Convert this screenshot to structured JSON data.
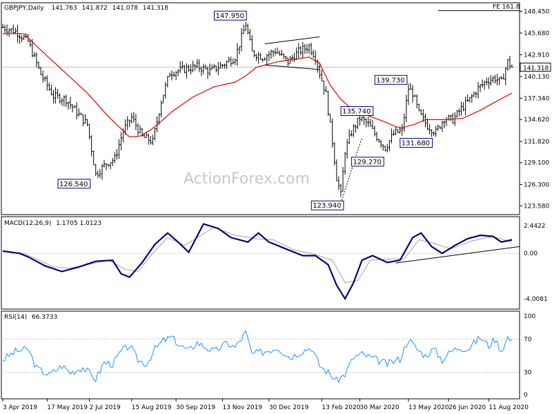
{
  "chart_data": [
    {
      "type": "line",
      "panel": "price",
      "title": "GBPJPY,Daily",
      "ohlc_header": {
        "open": "141.763",
        "high": "141.872",
        "low": "141.078",
        "close": "141.318"
      },
      "y_ticks": [
        "148.450",
        "145.680",
        "142.910",
        "140.130",
        "137.340",
        "134.620",
        "131.820",
        "129.100",
        "126.300",
        "123.580"
      ],
      "ylim": [
        122.9,
        149.2
      ],
      "current_price_label": "141.318",
      "current_price": 141.318,
      "fib_label": "FE 161.8",
      "fib_level": 148.55,
      "swing_labels": [
        {
          "text": "147.950",
          "bar": 115,
          "value": 147.95
        },
        {
          "text": "126.540",
          "bar": 44,
          "value": 126.54
        },
        {
          "text": "135.740",
          "bar": 162,
          "value": 135.74
        },
        {
          "text": "123.940",
          "bar": 160,
          "value": 123.94
        },
        {
          "text": "139.730",
          "bar": 192,
          "value": 139.73
        },
        {
          "text": "131.680",
          "bar": 190,
          "value": 131.68
        },
        {
          "text": "129.270",
          "bar": 181,
          "value": 129.27
        }
      ],
      "x_labels": [
        "3 Apr 2019",
        "17 May 2019",
        "2 Jul 2019",
        "15 Aug 2019",
        "30 Sep 2019",
        "13 Nov 2019",
        "30 Dec 2019",
        "13 Feb 2020",
        "30 Mar 2020",
        "13 May 2020",
        "26 Jun 2020",
        "11 Aug 2020"
      ],
      "x_label_bars": [
        0,
        21,
        41,
        61,
        82,
        104,
        126,
        151,
        169,
        192,
        211,
        230
      ],
      "key_closes": [
        {
          "bar": 0,
          "close": 146.4
        },
        {
          "bar": 6,
          "close": 145.9
        },
        {
          "bar": 12,
          "close": 144.6
        },
        {
          "bar": 18,
          "close": 140.4
        },
        {
          "bar": 24,
          "close": 137.6
        },
        {
          "bar": 30,
          "close": 137.2
        },
        {
          "bar": 36,
          "close": 135.2
        },
        {
          "bar": 40,
          "close": 134.0
        },
        {
          "bar": 44,
          "close": 127.6
        },
        {
          "bar": 49,
          "close": 129.0
        },
        {
          "bar": 53,
          "close": 129.6
        },
        {
          "bar": 57,
          "close": 133.2
        },
        {
          "bar": 61,
          "close": 134.9
        },
        {
          "bar": 66,
          "close": 132.4
        },
        {
          "bar": 71,
          "close": 131.8
        },
        {
          "bar": 75,
          "close": 137.0
        },
        {
          "bar": 79,
          "close": 140.6
        },
        {
          "bar": 85,
          "close": 141.0
        },
        {
          "bar": 92,
          "close": 141.4
        },
        {
          "bar": 98,
          "close": 140.8
        },
        {
          "bar": 104,
          "close": 141.6
        },
        {
          "bar": 110,
          "close": 142.6
        },
        {
          "bar": 115,
          "close": 146.8
        },
        {
          "bar": 118,
          "close": 143.2
        },
        {
          "bar": 123,
          "close": 142.6
        },
        {
          "bar": 129,
          "close": 143.4
        },
        {
          "bar": 135,
          "close": 142.0
        },
        {
          "bar": 140,
          "close": 143.3
        },
        {
          "bar": 145,
          "close": 144.0
        },
        {
          "bar": 148,
          "close": 142.6
        },
        {
          "bar": 150,
          "close": 140.6
        },
        {
          "bar": 153,
          "close": 137.8
        },
        {
          "bar": 156,
          "close": 131.8
        },
        {
          "bar": 158,
          "close": 127.2
        },
        {
          "bar": 160,
          "close": 125.0
        },
        {
          "bar": 162,
          "close": 130.6
        },
        {
          "bar": 165,
          "close": 133.0
        },
        {
          "bar": 169,
          "close": 134.8
        },
        {
          "bar": 173,
          "close": 134.0
        },
        {
          "bar": 177,
          "close": 132.4
        },
        {
          "bar": 181,
          "close": 131.0
        },
        {
          "bar": 185,
          "close": 132.8
        },
        {
          "bar": 189,
          "close": 133.2
        },
        {
          "bar": 192,
          "close": 138.6
        },
        {
          "bar": 194,
          "close": 138.0
        },
        {
          "bar": 197,
          "close": 135.4
        },
        {
          "bar": 201,
          "close": 133.8
        },
        {
          "bar": 205,
          "close": 133.0
        },
        {
          "bar": 209,
          "close": 134.8
        },
        {
          "bar": 213,
          "close": 134.6
        },
        {
          "bar": 217,
          "close": 136.0
        },
        {
          "bar": 221,
          "close": 137.2
        },
        {
          "bar": 225,
          "close": 138.6
        },
        {
          "bar": 229,
          "close": 139.6
        },
        {
          "bar": 233,
          "close": 139.9
        },
        {
          "bar": 236,
          "close": 139.4
        },
        {
          "bar": 239,
          "close": 142.0
        },
        {
          "bar": 241,
          "close": 141.3
        }
      ],
      "sma_points": [
        {
          "bar": 0,
          "value": 145.6
        },
        {
          "bar": 10,
          "value": 145.6
        },
        {
          "bar": 20,
          "value": 143.0
        },
        {
          "bar": 30,
          "value": 140.5
        },
        {
          "bar": 40,
          "value": 138.0
        },
        {
          "bar": 50,
          "value": 135.0
        },
        {
          "bar": 60,
          "value": 132.4
        },
        {
          "bar": 65,
          "value": 132.5
        },
        {
          "bar": 70,
          "value": 133.3
        },
        {
          "bar": 75,
          "value": 134.4
        },
        {
          "bar": 80,
          "value": 135.6
        },
        {
          "bar": 90,
          "value": 137.5
        },
        {
          "bar": 100,
          "value": 138.8
        },
        {
          "bar": 110,
          "value": 139.4
        },
        {
          "bar": 115,
          "value": 140.2
        },
        {
          "bar": 120,
          "value": 141.3
        },
        {
          "bar": 130,
          "value": 142.0
        },
        {
          "bar": 140,
          "value": 142.4
        },
        {
          "bar": 145,
          "value": 142.6
        },
        {
          "bar": 150,
          "value": 141.8
        },
        {
          "bar": 155,
          "value": 139.0
        },
        {
          "bar": 160,
          "value": 137.2
        },
        {
          "bar": 165,
          "value": 136.0
        },
        {
          "bar": 170,
          "value": 135.4
        },
        {
          "bar": 180,
          "value": 134.4
        },
        {
          "bar": 188,
          "value": 133.5
        },
        {
          "bar": 195,
          "value": 134.0
        },
        {
          "bar": 200,
          "value": 134.6
        },
        {
          "bar": 210,
          "value": 134.6
        },
        {
          "bar": 218,
          "value": 134.8
        },
        {
          "bar": 226,
          "value": 135.8
        },
        {
          "bar": 234,
          "value": 137.0
        },
        {
          "bar": 241,
          "value": 138.0
        }
      ]
    },
    {
      "type": "line",
      "panel": "macd",
      "title": "MACD(12,26,9)",
      "values_label": "1.1705 1.0123",
      "y_ticks": [
        "2.4422",
        "0.00",
        "-4.0081"
      ],
      "ylim": [
        -4.8,
        3.0
      ],
      "macd_points": [
        {
          "bar": 0,
          "value": 0.2
        },
        {
          "bar": 8,
          "value": 0.0
        },
        {
          "bar": 12,
          "value": -0.3
        },
        {
          "bar": 20,
          "value": -1.1
        },
        {
          "bar": 28,
          "value": -1.6
        },
        {
          "bar": 36,
          "value": -1.2
        },
        {
          "bar": 44,
          "value": -0.7
        },
        {
          "bar": 52,
          "value": -0.6
        },
        {
          "bar": 56,
          "value": -1.8
        },
        {
          "bar": 60,
          "value": -2.1
        },
        {
          "bar": 66,
          "value": -0.8
        },
        {
          "bar": 72,
          "value": 0.8
        },
        {
          "bar": 78,
          "value": 1.8
        },
        {
          "bar": 83,
          "value": 1.0
        },
        {
          "bar": 88,
          "value": 0.1
        },
        {
          "bar": 95,
          "value": 2.6
        },
        {
          "bar": 102,
          "value": 2.2
        },
        {
          "bar": 108,
          "value": 1.4
        },
        {
          "bar": 116,
          "value": 1.0
        },
        {
          "bar": 121,
          "value": 1.8
        },
        {
          "bar": 126,
          "value": 1.0
        },
        {
          "bar": 134,
          "value": 0.4
        },
        {
          "bar": 142,
          "value": -0.2
        },
        {
          "bar": 148,
          "value": -0.2
        },
        {
          "bar": 154,
          "value": -1.0
        },
        {
          "bar": 158,
          "value": -2.8
        },
        {
          "bar": 162,
          "value": -4.0
        },
        {
          "bar": 166,
          "value": -2.6
        },
        {
          "bar": 170,
          "value": -0.6
        },
        {
          "bar": 175,
          "value": -0.2
        },
        {
          "bar": 182,
          "value": -0.8
        },
        {
          "bar": 188,
          "value": -0.6
        },
        {
          "bar": 194,
          "value": 1.4
        },
        {
          "bar": 198,
          "value": 1.8
        },
        {
          "bar": 203,
          "value": 0.6
        },
        {
          "bar": 208,
          "value": 0.0
        },
        {
          "bar": 214,
          "value": 0.7
        },
        {
          "bar": 220,
          "value": 1.3
        },
        {
          "bar": 226,
          "value": 1.6
        },
        {
          "bar": 232,
          "value": 1.5
        },
        {
          "bar": 236,
          "value": 1.0
        },
        {
          "bar": 241,
          "value": 1.2
        }
      ],
      "signal_points": [
        {
          "bar": 0,
          "value": 0.2
        },
        {
          "bar": 10,
          "value": 0.0
        },
        {
          "bar": 16,
          "value": -0.5
        },
        {
          "bar": 24,
          "value": -1.2
        },
        {
          "bar": 32,
          "value": -1.3
        },
        {
          "bar": 40,
          "value": -1.0
        },
        {
          "bar": 50,
          "value": -0.6
        },
        {
          "bar": 58,
          "value": -1.4
        },
        {
          "bar": 64,
          "value": -1.6
        },
        {
          "bar": 70,
          "value": -0.2
        },
        {
          "bar": 78,
          "value": 1.4
        },
        {
          "bar": 86,
          "value": 0.7
        },
        {
          "bar": 92,
          "value": 1.4
        },
        {
          "bar": 100,
          "value": 2.3
        },
        {
          "bar": 110,
          "value": 1.6
        },
        {
          "bar": 120,
          "value": 1.3
        },
        {
          "bar": 128,
          "value": 1.2
        },
        {
          "bar": 138,
          "value": 0.3
        },
        {
          "bar": 148,
          "value": -0.1
        },
        {
          "bar": 156,
          "value": -0.6
        },
        {
          "bar": 162,
          "value": -2.6
        },
        {
          "bar": 168,
          "value": -2.4
        },
        {
          "bar": 174,
          "value": -0.6
        },
        {
          "bar": 182,
          "value": -0.5
        },
        {
          "bar": 190,
          "value": -0.5
        },
        {
          "bar": 197,
          "value": 1.2
        },
        {
          "bar": 204,
          "value": 0.9
        },
        {
          "bar": 212,
          "value": 0.4
        },
        {
          "bar": 222,
          "value": 1.1
        },
        {
          "bar": 232,
          "value": 1.5
        },
        {
          "bar": 241,
          "value": 1.0
        }
      ],
      "trendline": [
        {
          "bar": 186,
          "value": -0.85
        },
        {
          "bar": 245,
          "value": 0.6
        }
      ]
    },
    {
      "type": "line",
      "panel": "rsi",
      "title": "RSI(14)",
      "values_label": "66.3733",
      "y_ticks": [
        "100",
        "70",
        "30",
        "0"
      ],
      "ylim": [
        0,
        100
      ],
      "levels": [
        70,
        30
      ],
      "rsi_points": [
        {
          "bar": 0,
          "value": 45
        },
        {
          "bar": 6,
          "value": 55
        },
        {
          "bar": 12,
          "value": 58
        },
        {
          "bar": 16,
          "value": 35
        },
        {
          "bar": 22,
          "value": 27
        },
        {
          "bar": 28,
          "value": 38
        },
        {
          "bar": 32,
          "value": 30
        },
        {
          "bar": 38,
          "value": 36
        },
        {
          "bar": 44,
          "value": 22
        },
        {
          "bar": 48,
          "value": 42
        },
        {
          "bar": 52,
          "value": 40
        },
        {
          "bar": 56,
          "value": 55
        },
        {
          "bar": 60,
          "value": 62
        },
        {
          "bar": 64,
          "value": 45
        },
        {
          "bar": 68,
          "value": 40
        },
        {
          "bar": 72,
          "value": 58
        },
        {
          "bar": 76,
          "value": 68
        },
        {
          "bar": 80,
          "value": 72
        },
        {
          "bar": 84,
          "value": 62
        },
        {
          "bar": 88,
          "value": 56
        },
        {
          "bar": 92,
          "value": 66
        },
        {
          "bar": 96,
          "value": 60
        },
        {
          "bar": 100,
          "value": 55
        },
        {
          "bar": 106,
          "value": 65
        },
        {
          "bar": 110,
          "value": 60
        },
        {
          "bar": 115,
          "value": 78
        },
        {
          "bar": 118,
          "value": 52
        },
        {
          "bar": 124,
          "value": 55
        },
        {
          "bar": 130,
          "value": 60
        },
        {
          "bar": 136,
          "value": 48
        },
        {
          "bar": 142,
          "value": 56
        },
        {
          "bar": 146,
          "value": 60
        },
        {
          "bar": 150,
          "value": 38
        },
        {
          "bar": 154,
          "value": 30
        },
        {
          "bar": 158,
          "value": 20
        },
        {
          "bar": 162,
          "value": 28
        },
        {
          "bar": 166,
          "value": 48
        },
        {
          "bar": 170,
          "value": 52
        },
        {
          "bar": 176,
          "value": 46
        },
        {
          "bar": 182,
          "value": 40
        },
        {
          "bar": 188,
          "value": 46
        },
        {
          "bar": 192,
          "value": 70
        },
        {
          "bar": 196,
          "value": 58
        },
        {
          "bar": 200,
          "value": 50
        },
        {
          "bar": 204,
          "value": 58
        },
        {
          "bar": 208,
          "value": 45
        },
        {
          "bar": 212,
          "value": 55
        },
        {
          "bar": 216,
          "value": 60
        },
        {
          "bar": 220,
          "value": 58
        },
        {
          "bar": 226,
          "value": 72
        },
        {
          "bar": 230,
          "value": 62
        },
        {
          "bar": 233,
          "value": 70
        },
        {
          "bar": 236,
          "value": 56
        },
        {
          "bar": 239,
          "value": 72
        },
        {
          "bar": 241,
          "value": 66
        }
      ]
    }
  ],
  "watermark": "ActionForex.com",
  "colors": {
    "price": "#000000",
    "sma": "#e00000",
    "macd": "#00007f",
    "signal": "#a0a0a0",
    "rsi": "#1e90ff",
    "grid": "#c0c0c0",
    "label_box": "#00007f"
  }
}
